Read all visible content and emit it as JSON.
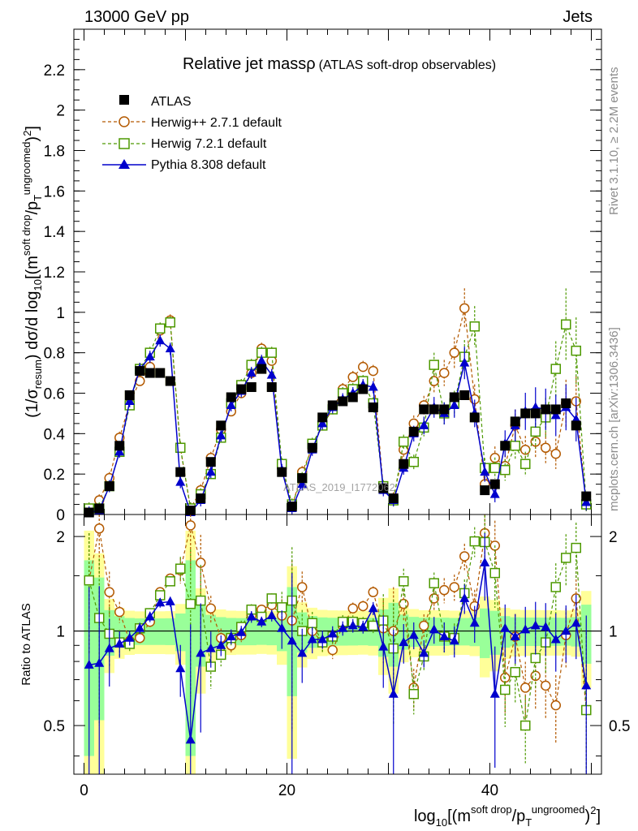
{
  "header": {
    "left": "13000 GeV pp",
    "right": "Jets"
  },
  "side": {
    "rivet": "Rivet 3.1.10, ≥ 2.2M events",
    "mcplots": "mcplots.cern.ch [arXiv:1306.3436]"
  },
  "watermark": "ATLAS_2019_I1772062",
  "chart_data": {
    "type": "scatter",
    "title": "Relative jet massρ",
    "subtitle": "(ATLAS soft-drop observables)",
    "ylabel_main": "(1/σ_resum) dσ/d log10[(m^soft drop/pT^ungroomed)^2]",
    "ylabel_ratio": "Ratio to ATLAS",
    "xlabel": "log10[(m^soft drop/pT^ungroomed)^2]",
    "xlim": [
      -1,
      51
    ],
    "ylim_main": [
      0,
      2.4
    ],
    "ylim_ratio": [
      0.35,
      2.35
    ],
    "x_ticks": [
      "0",
      "20",
      "40"
    ],
    "y_ticks_main": [
      "0",
      "0.2",
      "0.4",
      "0.6",
      "0.8",
      "1",
      "1.2",
      "1.4",
      "1.6",
      "1.8",
      "2",
      "2.2"
    ],
    "y_ticks_ratio": [
      "0.5",
      "1",
      "2"
    ],
    "x": [
      0.5,
      1.5,
      2.5,
      3.5,
      4.5,
      5.5,
      6.5,
      7.5,
      8.5,
      9.5,
      10.5,
      11.5,
      12.5,
      13.5,
      14.5,
      15.5,
      16.5,
      17.5,
      18.5,
      19.5,
      20.5,
      21.5,
      22.5,
      23.5,
      24.5,
      25.5,
      26.5,
      27.5,
      28.5,
      29.5,
      30.5,
      31.5,
      32.5,
      33.5,
      34.5,
      35.5,
      36.5,
      37.5,
      38.5,
      39.5,
      40.5,
      41.5,
      42.5,
      43.5,
      44.5,
      45.5,
      46.5,
      47.5,
      48.5,
      49.5
    ],
    "series": [
      {
        "name": "ATLAS",
        "color": "#000000",
        "marker": "filled-square",
        "values": [
          0.01,
          0.03,
          0.14,
          0.34,
          0.59,
          0.71,
          0.7,
          0.7,
          0.66,
          0.21,
          0.02,
          0.08,
          0.26,
          0.44,
          0.58,
          0.62,
          0.63,
          0.72,
          0.63,
          0.21,
          0.04,
          0.18,
          0.33,
          0.48,
          0.54,
          0.56,
          0.58,
          0.62,
          0.53,
          0.13,
          0.08,
          0.25,
          0.41,
          0.52,
          0.52,
          0.52,
          0.58,
          0.59,
          0.48,
          0.12,
          0.15,
          0.34,
          0.46,
          0.5,
          0.5,
          0.52,
          0.52,
          0.55,
          0.44,
          0.09
        ],
        "ratio": [
          1.0,
          1.0,
          1.0,
          1.0,
          1.0,
          1.0,
          1.0,
          1.0,
          1.0,
          1.0,
          1.0,
          1.0,
          1.0,
          1.0,
          1.0,
          1.0,
          1.0,
          1.0,
          1.0,
          1.0,
          1.0,
          1.0,
          1.0,
          1.0,
          1.0,
          1.0,
          1.0,
          1.0,
          1.0,
          1.0,
          1.0,
          1.0,
          1.0,
          1.0,
          1.0,
          1.0,
          1.0,
          1.0,
          1.0,
          1.0,
          1.0,
          1.0,
          1.0,
          1.0,
          1.0,
          1.0,
          1.0,
          1.0,
          1.0,
          1.0
        ]
      },
      {
        "name": "Herwig++ 2.7.1 default",
        "color": "#b35900",
        "marker": "open-circle",
        "values": [
          0.02,
          0.07,
          0.18,
          0.38,
          0.55,
          0.66,
          0.73,
          0.91,
          0.96,
          0.33,
          0.03,
          0.12,
          0.28,
          0.42,
          0.51,
          0.6,
          0.7,
          0.82,
          0.76,
          0.23,
          0.04,
          0.21,
          0.33,
          0.44,
          0.52,
          0.62,
          0.68,
          0.73,
          0.71,
          0.13,
          0.08,
          0.32,
          0.45,
          0.54,
          0.66,
          0.7,
          0.8,
          1.02,
          0.57,
          0.15,
          0.28,
          0.24,
          0.44,
          0.32,
          0.36,
          0.33,
          0.3,
          0.55,
          0.56,
          0.05
        ],
        "ratio": [
          1.45,
          2.12,
          1.33,
          1.15,
          0.93,
          0.95,
          1.07,
          1.33,
          1.47,
          1.56,
          2.17,
          1.65,
          1.18,
          0.95,
          0.9,
          0.97,
          1.12,
          1.17,
          1.21,
          1.12,
          1.08,
          1.38,
          1.0,
          0.92,
          0.87,
          1.04,
          1.18,
          1.2,
          1.33,
          1.02,
          1.0,
          1.22,
          0.66,
          1.04,
          1.27,
          1.35,
          1.38,
          1.73,
          1.2,
          2.05,
          1.87,
          0.71,
          0.96,
          0.66,
          0.72,
          0.67,
          0.58,
          0.97,
          1.27,
          0.56
        ]
      },
      {
        "name": "Herwig 7.2.1 default",
        "color": "#4d9900",
        "marker": "open-square",
        "values": [
          0.03,
          0.03,
          0.14,
          0.31,
          0.54,
          0.72,
          0.8,
          0.92,
          0.95,
          0.33,
          0.03,
          0.1,
          0.2,
          0.38,
          0.55,
          0.64,
          0.74,
          0.8,
          0.8,
          0.25,
          0.05,
          0.18,
          0.35,
          0.44,
          0.52,
          0.6,
          0.62,
          0.66,
          0.55,
          0.14,
          0.07,
          0.36,
          0.26,
          0.43,
          0.74,
          0.5,
          0.55,
          0.78,
          0.93,
          0.23,
          0.23,
          0.22,
          0.34,
          0.25,
          0.41,
          0.48,
          0.72,
          0.94,
          0.81,
          0.05
        ],
        "ratio": [
          1.45,
          1.1,
          0.98,
          0.92,
          0.91,
          1.02,
          1.14,
          1.3,
          1.44,
          1.58,
          1.22,
          1.25,
          0.77,
          0.84,
          0.95,
          1.03,
          1.17,
          1.11,
          1.27,
          1.19,
          1.25,
          1.0,
          1.06,
          0.92,
          0.96,
          1.07,
          1.07,
          1.06,
          1.04,
          1.08,
          0.88,
          1.44,
          0.63,
          0.83,
          1.42,
          0.96,
          0.95,
          1.32,
          1.93,
          1.92,
          1.53,
          0.65,
          0.74,
          0.5,
          0.82,
          0.92,
          1.38,
          1.71,
          1.84,
          0.56
        ]
      },
      {
        "name": "Pythia 8.308 default",
        "color": "#0000cc",
        "marker": "filled-triangle",
        "values": [
          0.01,
          0.02,
          0.14,
          0.31,
          0.56,
          0.72,
          0.78,
          0.86,
          0.82,
          0.16,
          0.01,
          0.07,
          0.21,
          0.39,
          0.54,
          0.61,
          0.7,
          0.76,
          0.69,
          0.22,
          0.03,
          0.15,
          0.32,
          0.45,
          0.53,
          0.57,
          0.6,
          0.64,
          0.63,
          0.12,
          0.07,
          0.23,
          0.4,
          0.44,
          0.53,
          0.5,
          0.54,
          0.75,
          0.5,
          0.21,
          0.1,
          0.35,
          0.44,
          0.51,
          0.53,
          0.52,
          0.49,
          0.53,
          0.47,
          0.06
        ],
        "ratio": [
          0.78,
          0.79,
          0.88,
          0.91,
          0.95,
          1.02,
          1.11,
          1.23,
          1.24,
          0.76,
          0.45,
          0.85,
          0.88,
          0.9,
          0.96,
          0.99,
          1.11,
          1.07,
          1.12,
          1.02,
          0.93,
          0.85,
          0.94,
          0.94,
          0.98,
          1.02,
          1.04,
          1.03,
          1.18,
          0.89,
          0.63,
          0.92,
          0.97,
          0.85,
          1.01,
          0.96,
          0.93,
          1.27,
          1.06,
          1.65,
          0.63,
          1.02,
          0.96,
          1.01,
          1.04,
          1.03,
          0.94,
          1.0,
          1.06,
          0.67
        ]
      }
    ]
  }
}
